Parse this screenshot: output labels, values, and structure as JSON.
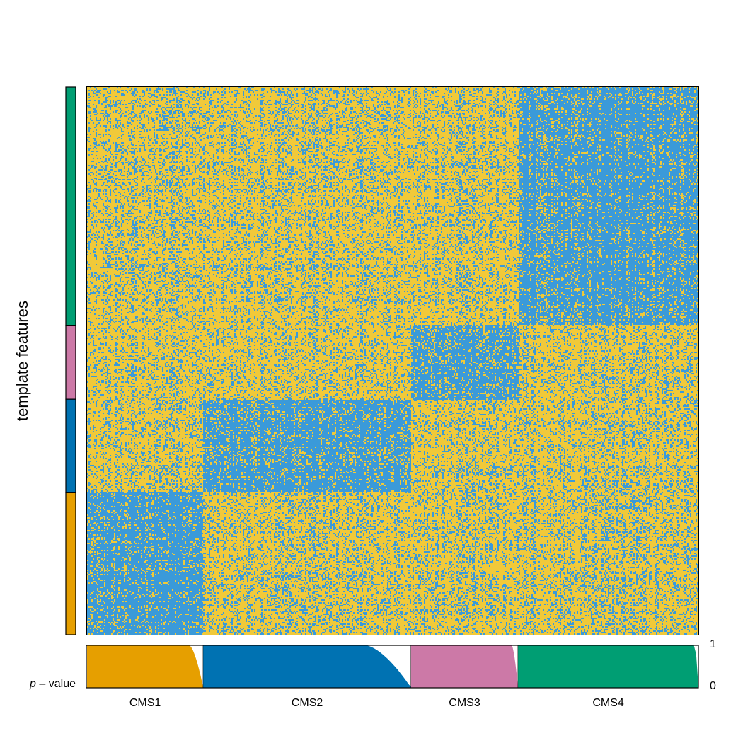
{
  "chart_data": {
    "type": "heatmap",
    "ylabel": "template features",
    "bottom_panel_label_prefix": "p",
    "bottom_panel_label_suffix": "value",
    "bottom_axis_ticks": [
      "1",
      "0"
    ],
    "palette": {
      "high": "#f0c93a",
      "low": "#3b9ad9"
    },
    "classes": [
      {
        "name": "CMS1",
        "color": "#e69f00",
        "sample_fraction": 0.19,
        "feature_fraction": 0.26,
        "pvalue_tail": 0.12
      },
      {
        "name": "CMS2",
        "color": "#0072b2",
        "sample_fraction": 0.34,
        "feature_fraction": 0.17,
        "pvalue_tail": 0.22
      },
      {
        "name": "CMS3",
        "color": "#cc79a7",
        "sample_fraction": 0.175,
        "feature_fraction": 0.135,
        "pvalue_tail": 0.06
      },
      {
        "name": "CMS4",
        "color": "#009e73",
        "sample_fraction": 0.295,
        "feature_fraction": 0.435,
        "pvalue_tail": 0.02
      }
    ],
    "feature_order_top_to_bottom": [
      "CMS4",
      "CMS3",
      "CMS2",
      "CMS1"
    ],
    "block_pattern": "feature block matching sample class is low (blue); others mostly high (yellow)"
  }
}
